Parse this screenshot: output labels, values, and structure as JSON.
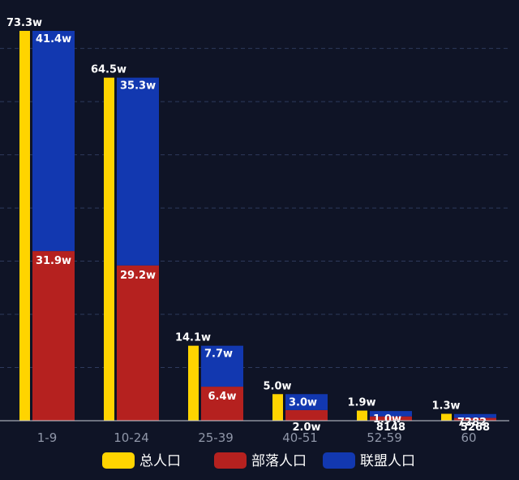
{
  "chart_data": {
    "type": "bar",
    "categories": [
      "1-9",
      "10-24",
      "25-39",
      "40-51",
      "52-59",
      "60"
    ],
    "ylim": [
      0,
      80
    ],
    "grid": true,
    "legend_position": "bottom",
    "series": [
      {
        "name": "总人口",
        "color": "#ffd400",
        "values": [
          73.3,
          64.5,
          14.1,
          5.0,
          1.9,
          1.3
        ],
        "labels": [
          "73.3w",
          "64.5w",
          "14.1w",
          "5.0w",
          "1.9w",
          "1.3w"
        ]
      },
      {
        "name": "部落人口",
        "color": "#b5211f",
        "values": [
          31.9,
          29.2,
          6.4,
          2.0,
          0.8148,
          0.5268
        ],
        "labels": [
          "31.9w",
          "29.2w",
          "6.4w",
          "2.0w",
          "8148",
          "5268"
        ]
      },
      {
        "name": "联盟人口",
        "color": "#1238b0",
        "values": [
          41.4,
          35.3,
          7.7,
          3.0,
          1.0,
          0.7282
        ],
        "labels": [
          "41.4w",
          "35.3w",
          "7.7w",
          "3.0w",
          "1.0w",
          "7282"
        ]
      }
    ]
  }
}
